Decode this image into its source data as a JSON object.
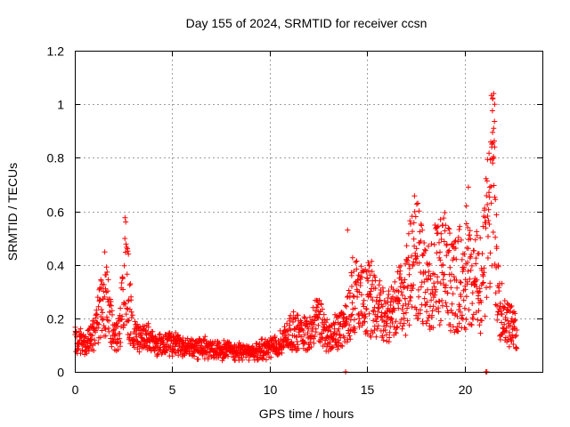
{
  "chart_data": {
    "type": "scatter",
    "title": "Day 155 of 2024, SRMTID for receiver ccsn",
    "xlabel": "GPS time / hours",
    "ylabel": "SRMTID / TECUs",
    "xlim": [
      0,
      24
    ],
    "ylim": [
      0,
      1.2
    ],
    "xticks": [
      "0",
      "5",
      "10",
      "15",
      "20"
    ],
    "yticks": [
      "0",
      "0.2",
      "0.4",
      "0.6",
      "0.8",
      "1",
      "1.2"
    ],
    "grid": true,
    "marker": "plus",
    "color": "#ff0000",
    "series": [
      {
        "name": "SRMTID",
        "profile_x": [
          0,
          0.5,
          1.0,
          1.5,
          1.8,
          2.0,
          2.3,
          2.6,
          2.8,
          3.0,
          3.5,
          4.0,
          5.0,
          6.0,
          7.0,
          8.0,
          8.8,
          9.5,
          10.5,
          11.0,
          12.0,
          12.5,
          13.0,
          13.5,
          14.0,
          14.3,
          14.8,
          15.3,
          16.0,
          16.5,
          17.0,
          17.5,
          18.0,
          18.5,
          19.0,
          19.5,
          20.0,
          20.5,
          20.8,
          21.0,
          21.3,
          21.5,
          21.7,
          22.0,
          22.3,
          22.7
        ],
        "profile_y": [
          0.12,
          0.11,
          0.13,
          0.3,
          0.22,
          0.12,
          0.15,
          0.4,
          0.25,
          0.15,
          0.13,
          0.11,
          0.1,
          0.09,
          0.09,
          0.08,
          0.07,
          0.08,
          0.1,
          0.15,
          0.15,
          0.2,
          0.13,
          0.15,
          0.2,
          0.3,
          0.25,
          0.28,
          0.2,
          0.25,
          0.3,
          0.45,
          0.3,
          0.35,
          0.38,
          0.32,
          0.38,
          0.33,
          0.35,
          0.4,
          0.6,
          0.75,
          0.35,
          0.2,
          0.18,
          0.14
        ],
        "peaks": [
          {
            "x": 21.5,
            "y": 1.04
          },
          {
            "x": 21.45,
            "y": 1.02
          },
          {
            "x": 21.55,
            "y": 1.0
          },
          {
            "x": 21.5,
            "y": 0.91
          },
          {
            "x": 21.4,
            "y": 0.84
          },
          {
            "x": 21.55,
            "y": 0.84
          },
          {
            "x": 21.45,
            "y": 0.78
          },
          {
            "x": 21.3,
            "y": 0.69
          },
          {
            "x": 20.2,
            "y": 0.69
          },
          {
            "x": 20.1,
            "y": 0.62
          },
          {
            "x": 17.5,
            "y": 0.58
          },
          {
            "x": 14.0,
            "y": 0.53
          },
          {
            "x": 2.7,
            "y": 0.46
          },
          {
            "x": 2.75,
            "y": 0.44
          }
        ],
        "outliers": [
          {
            "x": 13.9,
            "y": 0.0
          },
          {
            "x": 21.1,
            "y": 0.0
          },
          {
            "x": 21.15,
            "y": 0.0
          }
        ]
      }
    ]
  }
}
